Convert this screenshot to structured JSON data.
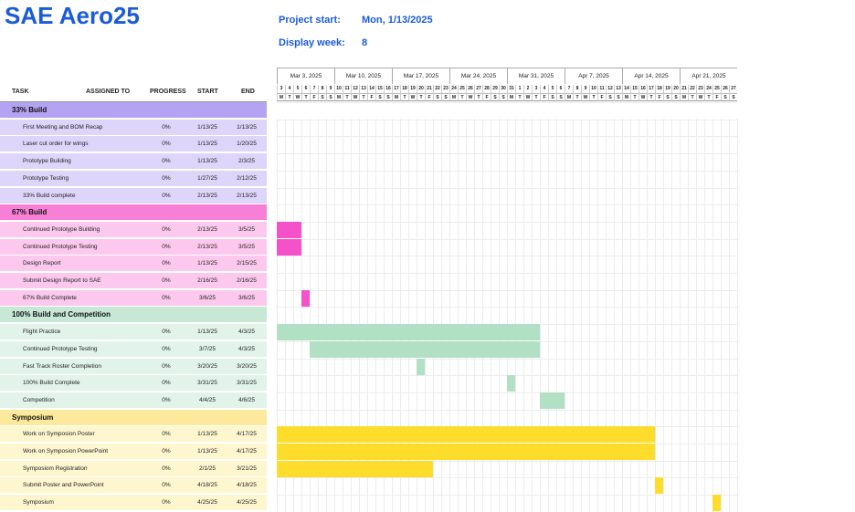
{
  "title": "SAE Aero25",
  "project_start_label": "Project start:",
  "project_start_value": "Mon, 1/13/2025",
  "display_week_label": "Display week:",
  "display_week_value": "8",
  "columns": {
    "task": "TASK",
    "assigned": "ASSIGNED TO",
    "progress": "PROGRESS",
    "start": "START",
    "end": "END"
  },
  "weeks": [
    "Mar 3, 2025",
    "Mar 10, 2025",
    "Mar 17, 2025",
    "Mar 24, 2025",
    "Mar 31, 2025",
    "Apr 7, 2025",
    "Apr 14, 2025",
    "Apr 21, 2025"
  ],
  "day_numbers": [
    "3",
    "4",
    "5",
    "6",
    "7",
    "8",
    "9",
    "10",
    "11",
    "12",
    "13",
    "14",
    "15",
    "16",
    "17",
    "18",
    "19",
    "20",
    "21",
    "22",
    "23",
    "24",
    "25",
    "26",
    "27",
    "28",
    "29",
    "30",
    "31",
    "1",
    "2",
    "3",
    "4",
    "5",
    "6",
    "7",
    "8",
    "9",
    "10",
    "11",
    "12",
    "13",
    "14",
    "15",
    "16",
    "17",
    "18",
    "19",
    "20",
    "21",
    "22",
    "23",
    "24",
    "25",
    "26",
    "27"
  ],
  "day_letters": [
    "M",
    "T",
    "W",
    "T",
    "F",
    "S",
    "S"
  ],
  "colors": {
    "accent": "#1a5bd8",
    "g1_head": "#b4a2f2",
    "g1_row": "#ddd5fa",
    "g2_head": "#f77fd6",
    "g2_row": "#fcc8ed",
    "g2_bar": "#f551c8",
    "g3_head": "#c8e8d6",
    "g3_row": "#e2f3ea",
    "g3_bar": "#b2e0c5",
    "g4_head": "#fde99c",
    "g4_row": "#fef6cf",
    "g4_bar": "#fedc2c"
  },
  "groups": [
    {
      "name": "33% Build",
      "head": "#b4a2f2",
      "row": "#ddd5fa",
      "bar": "#b4a2f2",
      "tasks": [
        {
          "name": "First Meeting and BOM Recap",
          "progress": "0%",
          "start": "1/13/25",
          "end": "1/13/25",
          "bar": null
        },
        {
          "name": "Laser cut order for wings",
          "progress": "0%",
          "start": "1/13/25",
          "end": "1/20/25",
          "bar": null
        },
        {
          "name": "Prototype Building",
          "progress": "0%",
          "start": "1/13/25",
          "end": "2/3/25",
          "bar": null
        },
        {
          "name": "Prototype Testing",
          "progress": "0%",
          "start": "1/27/25",
          "end": "2/12/25",
          "bar": null
        },
        {
          "name": "33% Build complete",
          "progress": "0%",
          "start": "2/13/25",
          "end": "2/13/25",
          "bar": null
        }
      ]
    },
    {
      "name": "67% Build",
      "head": "#f77fd6",
      "row": "#fcc8ed",
      "bar": "#f551c8",
      "tasks": [
        {
          "name": "Continued Prototype Building",
          "progress": "0%",
          "start": "2/13/25",
          "end": "3/5/25",
          "bar": [
            0,
            3
          ]
        },
        {
          "name": "Continued Prototype Testing",
          "progress": "0%",
          "start": "2/13/25",
          "end": "3/5/25",
          "bar": [
            0,
            3
          ]
        },
        {
          "name": "Design Report",
          "progress": "0%",
          "start": "1/13/25",
          "end": "2/15/25",
          "bar": null
        },
        {
          "name": "Submit Design Report to SAE",
          "progress": "0%",
          "start": "2/16/25",
          "end": "2/16/25",
          "bar": null
        },
        {
          "name": "67% Build Complete",
          "progress": "0%",
          "start": "3/6/25",
          "end": "3/6/25",
          "bar": [
            3,
            1
          ]
        }
      ]
    },
    {
      "name": "100% Build and Competition",
      "head": "#c8e8d6",
      "row": "#e2f3ea",
      "bar": "#b2e0c5",
      "tasks": [
        {
          "name": "Flight Practice",
          "progress": "0%",
          "start": "1/13/25",
          "end": "4/3/25",
          "bar": [
            0,
            32
          ]
        },
        {
          "name": "Continued Prototype Testing",
          "progress": "0%",
          "start": "3/7/25",
          "end": "4/3/25",
          "bar": [
            4,
            28
          ]
        },
        {
          "name": "Fast Track Roster Completion",
          "progress": "0%",
          "start": "3/20/25",
          "end": "3/20/25",
          "bar": [
            17,
            1
          ]
        },
        {
          "name": "100% Build Complete",
          "progress": "0%",
          "start": "3/31/25",
          "end": "3/31/25",
          "bar": [
            28,
            1
          ]
        },
        {
          "name": "Competition",
          "progress": "0%",
          "start": "4/4/25",
          "end": "4/6/25",
          "bar": [
            32,
            3
          ]
        }
      ]
    },
    {
      "name": "Symposium",
      "head": "#fde99c",
      "row": "#fef6cf",
      "bar": "#fedc2c",
      "tasks": [
        {
          "name": "Work on Symposion Poster",
          "progress": "0%",
          "start": "1/13/25",
          "end": "4/17/25",
          "bar": [
            0,
            46
          ]
        },
        {
          "name": "Work on Symposion PowerPoint",
          "progress": "0%",
          "start": "1/13/25",
          "end": "4/17/25",
          "bar": [
            0,
            46
          ]
        },
        {
          "name": "Symposiom Registration",
          "progress": "0%",
          "start": "2/1/25",
          "end": "3/21/25",
          "bar": [
            0,
            19
          ]
        },
        {
          "name": "Submit Poster and PowerPoint",
          "progress": "0%",
          "start": "4/18/25",
          "end": "4/18/25",
          "bar": [
            46,
            1
          ]
        },
        {
          "name": "Symposium",
          "progress": "0%",
          "start": "4/25/25",
          "end": "4/25/25",
          "bar": [
            53,
            1
          ]
        }
      ]
    }
  ]
}
